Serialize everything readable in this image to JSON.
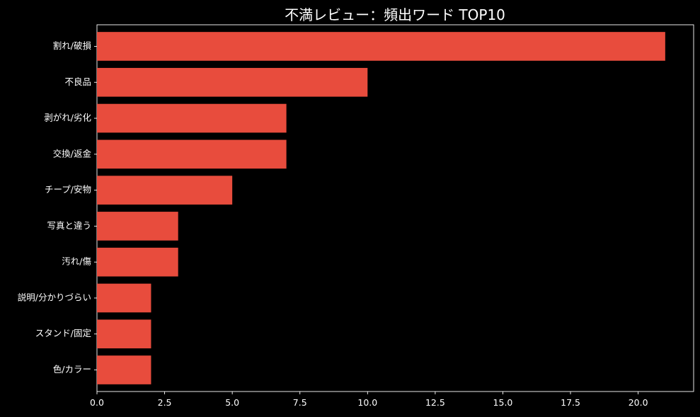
{
  "chart_data": {
    "type": "bar",
    "orientation": "horizontal",
    "title": "不満レビュー：頻出ワード TOP10",
    "xlabel": "",
    "ylabel": "",
    "categories": [
      "割れ/破損",
      "不良品",
      "剥がれ/劣化",
      "交換/返金",
      "チープ/安物",
      "写真と違う",
      "汚れ/傷",
      "説明/分かりづらい",
      "スタンド/固定",
      "色/カラー"
    ],
    "values": [
      21,
      10,
      7,
      7,
      5,
      3,
      3,
      2,
      2,
      2
    ],
    "xlim": [
      0,
      22.05
    ],
    "xticks": [
      0,
      2.5,
      5,
      7.5,
      10,
      12.5,
      15,
      17.5,
      20
    ],
    "xtick_labels": [
      "0.0",
      "2.5",
      "5.0",
      "7.5",
      "10.0",
      "12.5",
      "15.0",
      "17.5",
      "20.0"
    ],
    "grid": false,
    "legend": "none",
    "bar_color": "#e84c3d",
    "background": "#000000",
    "text_color": "#ffffff"
  }
}
